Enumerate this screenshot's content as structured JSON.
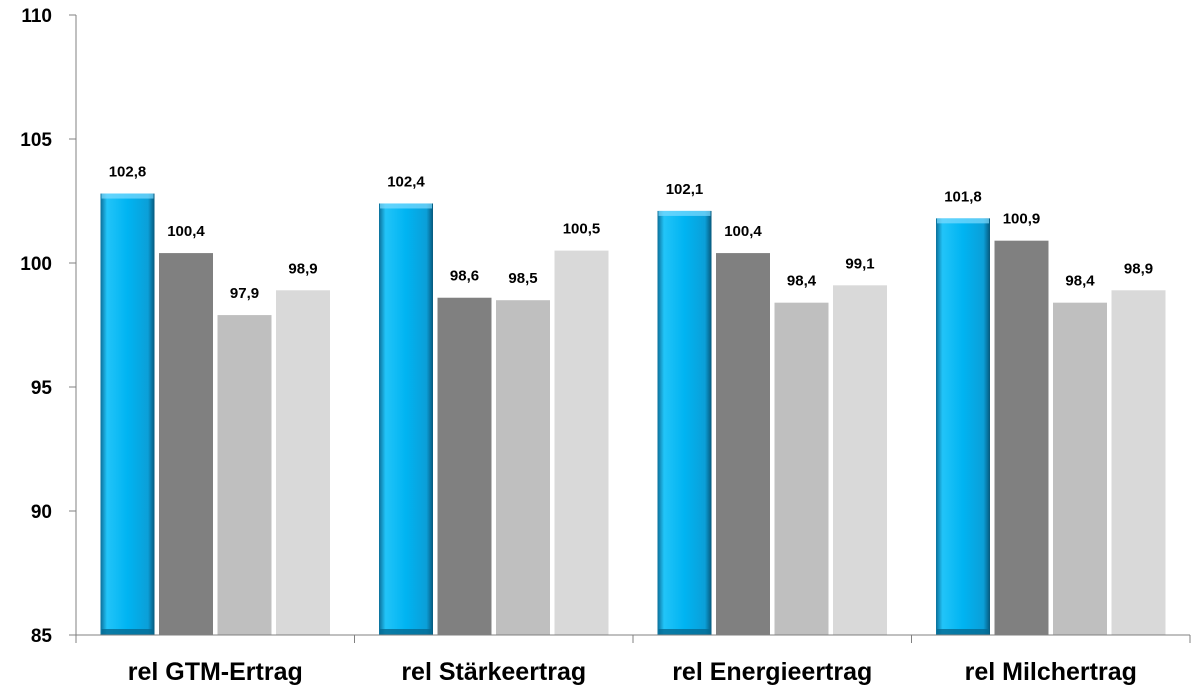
{
  "chart_data": {
    "type": "bar",
    "categories": [
      "rel GTM-Ertrag",
      "rel Stärkeertrag",
      "rel Energieertrag",
      "rel Milchertrag"
    ],
    "series": [
      {
        "values": [
          102.8,
          102.4,
          102.1,
          101.8
        ],
        "labels": [
          "102,8",
          "102,4",
          "102,1",
          "101,8"
        ],
        "color": "#00b0f0"
      },
      {
        "values": [
          100.4,
          98.6,
          100.4,
          100.9
        ],
        "labels": [
          "100,4",
          "98,6",
          "100,4",
          "100,9"
        ],
        "color": "#808080"
      },
      {
        "values": [
          97.9,
          98.5,
          98.4,
          98.4
        ],
        "labels": [
          "97,9",
          "98,5",
          "98,4",
          "98,4"
        ],
        "color": "#bfbfbf"
      },
      {
        "values": [
          98.9,
          100.5,
          99.1,
          98.9
        ],
        "labels": [
          "98,9",
          "100,5",
          "99,1",
          "98,9"
        ],
        "color": "#d9d9d9"
      }
    ],
    "yticks": [
      85,
      90,
      95,
      100,
      105,
      110
    ],
    "ytick_labels": [
      "85",
      "90",
      "95",
      "100",
      "105",
      "110"
    ],
    "ylim": [
      85,
      110
    ],
    "grid": false,
    "legend": "none"
  }
}
